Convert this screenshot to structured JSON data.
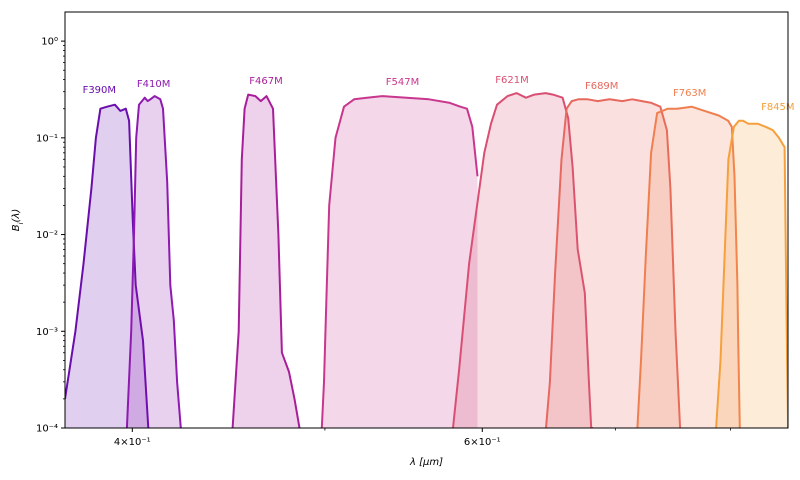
{
  "chart_data": {
    "type": "area",
    "xlabel": "λ [μm]",
    "ylabel": "B_i(λ)",
    "xscale": "log",
    "yscale": "log",
    "xlim": [
      0.37,
      0.855
    ],
    "ylim": [
      0.0001,
      2
    ],
    "grid": false,
    "x_ticks": [
      {
        "value": 0.4,
        "label": "4×10⁻¹"
      },
      {
        "value": 0.6,
        "label": "6×10⁻¹"
      }
    ],
    "y_ticks": [
      {
        "value": 0.0001,
        "label": "10⁻⁴"
      },
      {
        "value": 0.001,
        "label": "10⁻³"
      },
      {
        "value": 0.01,
        "label": "10⁻²"
      },
      {
        "value": 0.1,
        "label": "10⁻¹"
      },
      {
        "value": 1,
        "label": "10⁰"
      }
    ],
    "series": [
      {
        "name": "F390M",
        "color": "#6a0dad",
        "label_pos": [
          0.385,
          0.29
        ],
        "x": [
          0.37,
          0.3745,
          0.378,
          0.3815,
          0.3835,
          0.3855,
          0.3885,
          0.392,
          0.3945,
          0.397,
          0.3985,
          0.4003,
          0.4016,
          0.405,
          0.4075
        ],
        "y": [
          0.0002,
          0.001,
          0.005,
          0.03,
          0.1,
          0.2,
          0.21,
          0.22,
          0.19,
          0.2,
          0.15,
          0.013,
          0.003,
          0.0008,
          0.0001
        ]
      },
      {
        "name": "F410M",
        "color": "#8e1ab0",
        "label_pos": [
          0.41,
          0.335
        ],
        "x": [
          0.3975,
          0.3995,
          0.4008,
          0.4018,
          0.4031,
          0.4058,
          0.4072,
          0.4085,
          0.4105,
          0.4132,
          0.4145,
          0.4165,
          0.418,
          0.4197,
          0.4213,
          0.4231
        ],
        "y": [
          0.0001,
          0.001,
          0.01,
          0.1,
          0.22,
          0.26,
          0.24,
          0.25,
          0.27,
          0.25,
          0.2,
          0.035,
          0.003,
          0.0013,
          0.0003,
          0.0001
        ]
      },
      {
        "name": "F467M",
        "color": "#a81e9a",
        "label_pos": [
          0.467,
          0.36
        ],
        "x": [
          0.4493,
          0.4525,
          0.4541,
          0.4556,
          0.4575,
          0.4613,
          0.4642,
          0.4673,
          0.4708,
          0.4738,
          0.4757,
          0.4796,
          0.4827,
          0.4855
        ],
        "y": [
          0.0001,
          0.001,
          0.06,
          0.2,
          0.28,
          0.27,
          0.24,
          0.27,
          0.2,
          0.01,
          0.0006,
          0.00038,
          0.0002,
          0.0001
        ]
      },
      {
        "name": "F547M",
        "color": "#c8378d",
        "label_pos": [
          0.547,
          0.35
        ],
        "x": [
          0.4982,
          0.4995,
          0.5008,
          0.5025,
          0.5062,
          0.5112,
          0.5172,
          0.5249,
          0.5347,
          0.5497,
          0.5641,
          0.5779,
          0.5849,
          0.5895,
          0.5931,
          0.5967
        ],
        "y": [
          0.0001,
          0.0003,
          0.002,
          0.02,
          0.1,
          0.21,
          0.25,
          0.26,
          0.27,
          0.26,
          0.25,
          0.23,
          0.21,
          0.2,
          0.13,
          0.04
        ]
      },
      {
        "name": "F621M",
        "color": "#d94f73",
        "label_pos": [
          0.621,
          0.37
        ],
        "x": [
          0.58,
          0.5841,
          0.5909,
          0.6014,
          0.6061,
          0.6103,
          0.6178,
          0.6244,
          0.6311,
          0.6373,
          0.6457,
          0.6512,
          0.6585,
          0.6628,
          0.6662,
          0.6701,
          0.6757,
          0.6789,
          0.6807,
          0.6822
        ],
        "y": [
          0.0001,
          0.0004,
          0.005,
          0.07,
          0.14,
          0.22,
          0.27,
          0.29,
          0.26,
          0.28,
          0.29,
          0.28,
          0.26,
          0.16,
          0.05,
          0.007,
          0.0025,
          0.0003,
          0.0001,
          0.0001
        ]
      },
      {
        "name": "F689M",
        "color": "#e7685e",
        "label_pos": [
          0.689,
          0.32
        ],
        "x": [
          0.646,
          0.6489,
          0.6528,
          0.6577,
          0.6616,
          0.6655,
          0.6706,
          0.6779,
          0.6859,
          0.6953,
          0.7057,
          0.7138,
          0.7219,
          0.7299,
          0.7374,
          0.7431,
          0.7461,
          0.7505,
          0.7545
        ],
        "y": [
          0.0001,
          0.0003,
          0.004,
          0.06,
          0.2,
          0.24,
          0.25,
          0.25,
          0.24,
          0.25,
          0.24,
          0.25,
          0.24,
          0.23,
          0.21,
          0.12,
          0.03,
          0.001,
          0.0001
        ]
      },
      {
        "name": "F763M",
        "color": "#f07f4f",
        "label_pos": [
          0.763,
          0.27
        ],
        "x": [
          0.7181,
          0.7211,
          0.7251,
          0.7296,
          0.7347,
          0.7439,
          0.7517,
          0.7647,
          0.7763,
          0.789,
          0.7978,
          0.8011,
          0.8036,
          0.8063,
          0.8071,
          0.8086
        ],
        "y": [
          0.0001,
          0.0005,
          0.006,
          0.07,
          0.18,
          0.2,
          0.2,
          0.21,
          0.19,
          0.17,
          0.15,
          0.13,
          0.04,
          0.003,
          0.0008,
          0.0001
        ]
      },
      {
        "name": "F845M",
        "color": "#f5a03c",
        "label_pos": [
          0.845,
          0.195
        ],
        "x": [
          0.7867,
          0.7907,
          0.7942,
          0.798,
          0.8031,
          0.8077,
          0.8116,
          0.8167,
          0.8255,
          0.8331,
          0.8402,
          0.846,
          0.8516,
          0.8526,
          0.8541,
          0.855,
          0.855
        ],
        "y": [
          0.0001,
          0.0005,
          0.005,
          0.06,
          0.13,
          0.15,
          0.15,
          0.14,
          0.14,
          0.13,
          0.12,
          0.1,
          0.08,
          0.01,
          0.0005,
          0.00012,
          0.0001
        ]
      }
    ]
  }
}
